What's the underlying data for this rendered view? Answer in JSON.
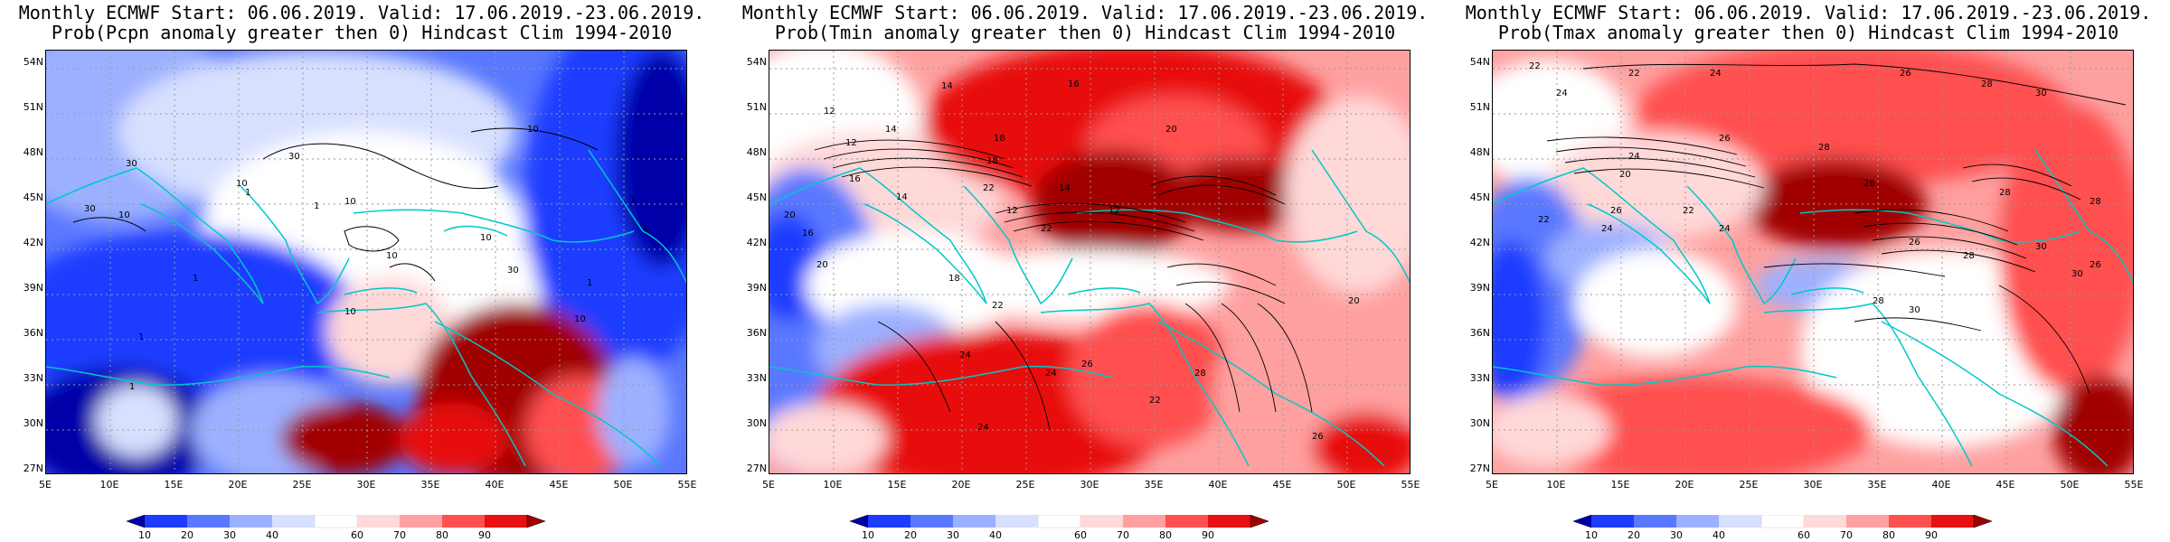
{
  "panels": [
    {
      "title1": "Monthly ECMWF Start: 06.06.2019. Valid: 17.06.2019.-23.06.2019.",
      "title2": "Prob(Pcpn anomaly greater then 0) Hindcast Clim 1994-2010",
      "variable": "precipitation",
      "contour_labels": [
        "10",
        "30",
        "10",
        "30",
        "10",
        "1",
        "1",
        "10",
        "30",
        "10",
        "1",
        "1",
        "10",
        "1",
        "1",
        "1",
        "30",
        "10",
        "1",
        "10"
      ]
    },
    {
      "title1": "Monthly ECMWF Start: 06.06.2019. Valid: 17.06.2019.-23.06.2019.",
      "title2": "Prob(Tmin anomaly greater then 0) Hindcast Clim 1994-2010",
      "variable": "tmin",
      "contour_labels": [
        "14",
        "16",
        "12",
        "14",
        "18",
        "20",
        "12",
        "16",
        "18",
        "22",
        "14",
        "20",
        "16",
        "14",
        "12",
        "12",
        "22",
        "18",
        "20",
        "22",
        "24",
        "26",
        "24",
        "28",
        "20",
        "22",
        "24",
        "26"
      ]
    },
    {
      "title1": "Monthly ECMWF Start: 06.06.2019. Valid: 17.06.2019.-23.06.2019.",
      "title2": "Prob(Tmax anomaly greater then 0) Hindcast Clim 1994-2010",
      "variable": "tmax",
      "contour_labels": [
        "22",
        "24",
        "26",
        "28",
        "30",
        "22",
        "24",
        "26",
        "28",
        "24",
        "26",
        "28",
        "20",
        "22",
        "24",
        "26",
        "28",
        "30",
        "22",
        "26",
        "28",
        "30",
        "24",
        "28",
        "30",
        "26"
      ]
    }
  ],
  "axes": {
    "lat_labels": [
      "54N",
      "51N",
      "48N",
      "45N",
      "42N",
      "39N",
      "36N",
      "33N",
      "30N",
      "27N"
    ],
    "lon_labels": [
      "5E",
      "10E",
      "15E",
      "20E",
      "25E",
      "30E",
      "35E",
      "40E",
      "45E",
      "50E",
      "55E"
    ]
  },
  "colorbar": {
    "labels": [
      "10",
      "20",
      "30",
      "40",
      "60",
      "70",
      "80",
      "90"
    ],
    "colors": [
      "#0000a8",
      "#1c3cff",
      "#5a78ff",
      "#9cb0ff",
      "#d8e0ff",
      "#ffffff",
      "#ffd8d8",
      "#ffa0a0",
      "#ff5050",
      "#e81010",
      "#a00000"
    ]
  },
  "colors": {
    "coast": "#00c8c8",
    "contour": "#000000",
    "grid": "#9a9a9a"
  }
}
